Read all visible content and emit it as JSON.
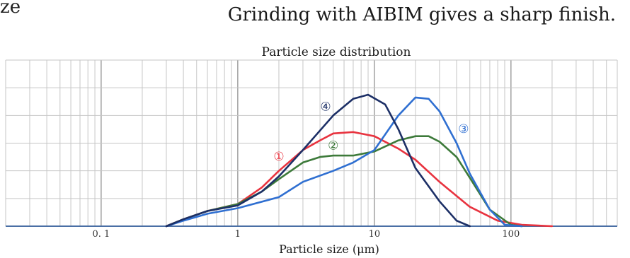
{
  "header": {
    "fragment": "ze",
    "headline": "Grinding with AIBIM gives a sharp finish."
  },
  "chart_data": {
    "type": "line",
    "title": "Particle size distribution",
    "xlabel": "Particle size (μm)",
    "ylabel": "",
    "x_scale": "log",
    "xlim": [
      0.02,
      600
    ],
    "ylim": [
      0,
      12
    ],
    "x_ticks": [
      {
        "value": 0.1,
        "label": "0. 1"
      },
      {
        "value": 1,
        "label": "1"
      },
      {
        "value": 10,
        "label": "10"
      },
      {
        "value": 100,
        "label": "100"
      }
    ],
    "grid": true,
    "series": [
      {
        "name": "①",
        "color": "#e8333f",
        "points": [
          [
            0.3,
            0
          ],
          [
            0.4,
            0.5
          ],
          [
            0.6,
            1.1
          ],
          [
            1,
            1.6
          ],
          [
            1.5,
            2.8
          ],
          [
            2,
            4
          ],
          [
            3,
            5.5
          ],
          [
            4,
            6.2
          ],
          [
            5,
            6.7
          ],
          [
            7,
            6.8
          ],
          [
            10,
            6.5
          ],
          [
            15,
            5.6
          ],
          [
            20,
            4.8
          ],
          [
            30,
            3.2
          ],
          [
            50,
            1.4
          ],
          [
            80,
            0.4
          ],
          [
            120,
            0.1
          ],
          [
            200,
            0
          ]
        ]
      },
      {
        "name": "②",
        "color": "#3d7a3a",
        "points": [
          [
            0.3,
            0
          ],
          [
            0.4,
            0.5
          ],
          [
            0.6,
            1.1
          ],
          [
            1,
            1.6
          ],
          [
            1.5,
            2.5
          ],
          [
            2,
            3.4
          ],
          [
            3,
            4.6
          ],
          [
            4,
            5
          ],
          [
            5,
            5.1
          ],
          [
            7,
            5.1
          ],
          [
            10,
            5.4
          ],
          [
            15,
            6.2
          ],
          [
            20,
            6.5
          ],
          [
            25,
            6.5
          ],
          [
            30,
            6.1
          ],
          [
            40,
            5
          ],
          [
            50,
            3.5
          ],
          [
            70,
            1.2
          ],
          [
            100,
            0.1
          ],
          [
            120,
            0
          ]
        ]
      },
      {
        "name": "③",
        "color": "#2f6fd1",
        "points": [
          [
            0.3,
            0
          ],
          [
            0.4,
            0.4
          ],
          [
            0.6,
            0.9
          ],
          [
            1,
            1.3
          ],
          [
            2,
            2.1
          ],
          [
            3,
            3.2
          ],
          [
            5,
            4
          ],
          [
            7,
            4.6
          ],
          [
            10,
            5.5
          ],
          [
            15,
            8
          ],
          [
            20,
            9.3
          ],
          [
            25,
            9.2
          ],
          [
            30,
            8.3
          ],
          [
            40,
            6
          ],
          [
            50,
            3.8
          ],
          [
            70,
            1.2
          ],
          [
            90,
            0.1
          ],
          [
            120,
            0
          ]
        ]
      },
      {
        "name": "④",
        "color": "#1c2f66",
        "points": [
          [
            0.3,
            0
          ],
          [
            0.4,
            0.5
          ],
          [
            0.6,
            1.1
          ],
          [
            1,
            1.5
          ],
          [
            1.5,
            2.5
          ],
          [
            2,
            3.6
          ],
          [
            3,
            5.5
          ],
          [
            5,
            8
          ],
          [
            7,
            9.2
          ],
          [
            9,
            9.5
          ],
          [
            12,
            8.8
          ],
          [
            15,
            7
          ],
          [
            20,
            4.2
          ],
          [
            30,
            1.8
          ],
          [
            40,
            0.4
          ],
          [
            50,
            0
          ]
        ]
      }
    ],
    "annotations": [
      {
        "text": "①",
        "series": "①",
        "x": 2,
        "y": 5
      },
      {
        "text": "②",
        "series": "②",
        "x": 5,
        "y": 5.8
      },
      {
        "text": "③",
        "series": "③",
        "x": 45,
        "y": 7
      },
      {
        "text": "④",
        "series": "④",
        "x": 4.4,
        "y": 8.6
      }
    ]
  }
}
